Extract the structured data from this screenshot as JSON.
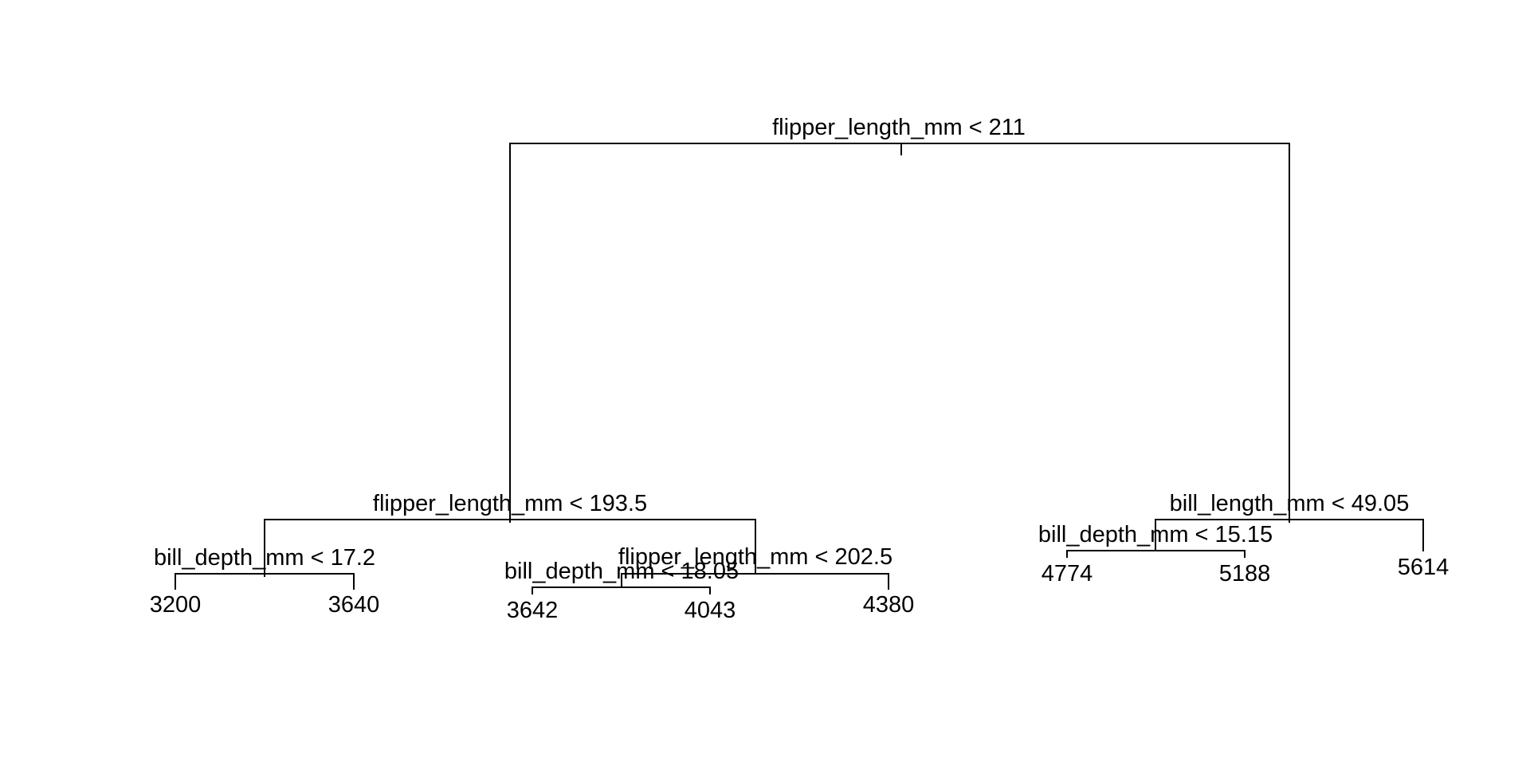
{
  "tree": {
    "splits": {
      "root": "flipper_length_mm < 211",
      "left": "flipper_length_mm < 193.5",
      "left_left": "bill_depth_mm < 17.2",
      "left_right": "flipper_length_mm < 202.5",
      "left_right_left": "bill_depth_mm < 18.05",
      "right": "bill_length_mm < 49.05",
      "right_left": "bill_depth_mm < 15.15"
    },
    "leaves": {
      "ll_left": "3200",
      "ll_right": "3640",
      "lrl_left": "3642",
      "lrl_right": "4043",
      "lr_right": "4380",
      "rl_left": "4774",
      "rl_right": "5188",
      "r_right": "5614"
    }
  }
}
